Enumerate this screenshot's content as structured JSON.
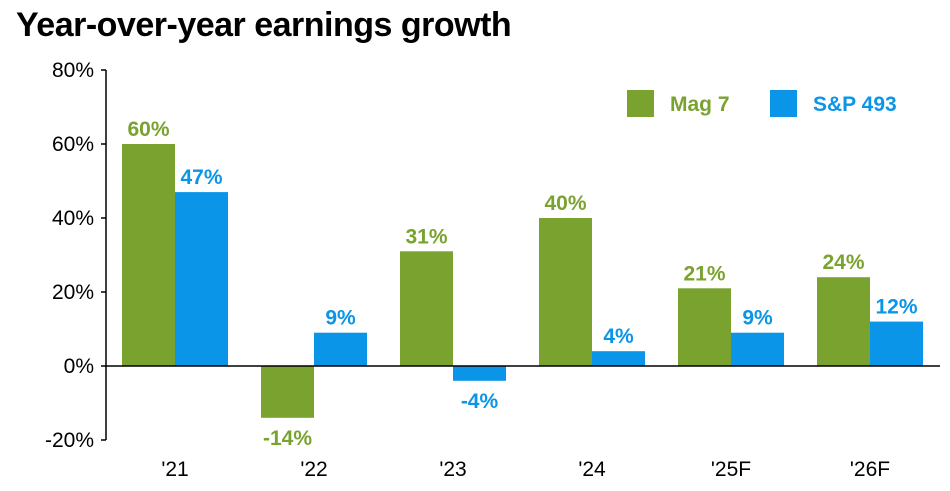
{
  "chart_data": {
    "type": "bar",
    "title": "Year-over-year earnings growth",
    "xlabel": "",
    "ylabel": "",
    "categories": [
      "'21",
      "'22",
      "'23",
      "'24",
      "'25F",
      "'26F"
    ],
    "series": [
      {
        "name": "Mag 7",
        "color": "#7aa22f",
        "values": [
          60,
          -14,
          31,
          40,
          21,
          24
        ],
        "labels": [
          "60%",
          "-14%",
          "31%",
          "40%",
          "21%",
          "24%"
        ]
      },
      {
        "name": "S&P 493",
        "color": "#0b95e8",
        "values": [
          47,
          9,
          -4,
          4,
          9,
          12
        ],
        "labels": [
          "47%",
          "9%",
          "-4%",
          "4%",
          "9%",
          "12%"
        ]
      }
    ],
    "ylim": [
      -20,
      80
    ],
    "yticks": [
      80,
      60,
      40,
      20,
      0,
      -20
    ],
    "ytick_labels": [
      "80%",
      "60%",
      "40%",
      "20%",
      "0%",
      "-20%"
    ],
    "grid": false,
    "legend_position": "top-right"
  }
}
